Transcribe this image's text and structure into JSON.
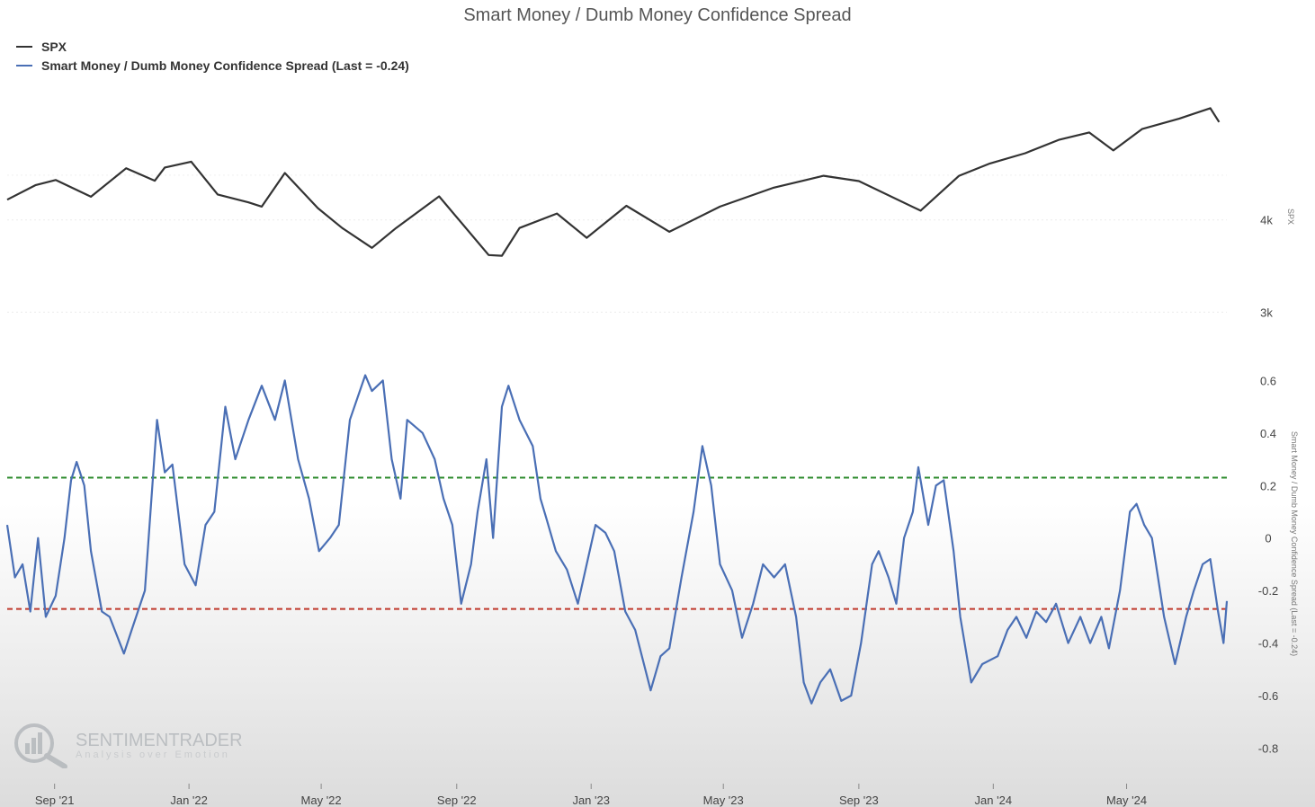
{
  "chart_data": {
    "type": "line",
    "title": "Smart Money / Dumb Money Confidence Spread",
    "legend": "top-left",
    "x_tick_labels": [
      "Sep '21",
      "Jan '22",
      "May '22",
      "Sep '22",
      "Jan '23",
      "May '23",
      "Sep '23",
      "Jan '24",
      "May '24"
    ],
    "x_range": [
      "2021-07-20",
      "2024-07-31"
    ],
    "upper_panel": {
      "y_axis_title": "SPX",
      "y_tick_labels": [
        "4k",
        "3k"
      ],
      "y_tick_values": [
        4000,
        3000
      ],
      "log_scale": true,
      "ylim": [
        2800,
        6000
      ]
    },
    "lower_panel": {
      "y_axis_title": "Smart Money / Dumb Money Confidence Spread (Last = -0.24)",
      "y_tick_labels": [
        "0.6",
        "0.4",
        "0.2",
        "0",
        "-0.2",
        "-0.4",
        "-0.6",
        "-0.8"
      ],
      "y_tick_values": [
        0.6,
        0.4,
        0.2,
        0,
        -0.2,
        -0.4,
        -0.6,
        -0.8
      ],
      "ylim": [
        -0.86,
        0.68
      ],
      "reference_lines": [
        {
          "value": 0.23,
          "color": "#2e8b2e",
          "style": "dashed"
        },
        {
          "value": -0.27,
          "color": "#c0392b",
          "style": "dashed"
        }
      ]
    },
    "series": [
      {
        "name": "SPX",
        "color": "#333333",
        "panel": "upper",
        "points": [
          [
            "2021-07-20",
            4260
          ],
          [
            "2021-08-15",
            4460
          ],
          [
            "2021-09-02",
            4530
          ],
          [
            "2021-10-04",
            4300
          ],
          [
            "2021-11-05",
            4700
          ],
          [
            "2021-12-01",
            4520
          ],
          [
            "2021-12-10",
            4710
          ],
          [
            "2022-01-03",
            4796
          ],
          [
            "2022-01-27",
            4330
          ],
          [
            "2022-02-24",
            4225
          ],
          [
            "2022-03-08",
            4170
          ],
          [
            "2022-03-29",
            4630
          ],
          [
            "2022-04-28",
            4150
          ],
          [
            "2022-05-20",
            3900
          ],
          [
            "2022-06-16",
            3666
          ],
          [
            "2022-07-08",
            3900
          ],
          [
            "2022-08-16",
            4305
          ],
          [
            "2022-09-30",
            3585
          ],
          [
            "2022-10-12",
            3577
          ],
          [
            "2022-10-28",
            3900
          ],
          [
            "2022-12-01",
            4080
          ],
          [
            "2022-12-28",
            3783
          ],
          [
            "2023-02-02",
            4180
          ],
          [
            "2023-03-13",
            3855
          ],
          [
            "2023-04-28",
            4170
          ],
          [
            "2023-06-15",
            4420
          ],
          [
            "2023-07-31",
            4590
          ],
          [
            "2023-09-01",
            4515
          ],
          [
            "2023-10-27",
            4117
          ],
          [
            "2023-12-01",
            4590
          ],
          [
            "2023-12-29",
            4770
          ],
          [
            "2024-01-30",
            4925
          ],
          [
            "2024-03-01",
            5137
          ],
          [
            "2024-03-28",
            5254
          ],
          [
            "2024-04-19",
            4967
          ],
          [
            "2024-05-15",
            5310
          ],
          [
            "2024-06-18",
            5487
          ],
          [
            "2024-07-16",
            5667
          ],
          [
            "2024-07-24",
            5427
          ]
        ]
      },
      {
        "name": "Smart Money / Dumb Money Confidence Spread (Last = -0.24)",
        "color": "#4a6fb5",
        "panel": "lower",
        "last": -0.24,
        "points": [
          [
            "2021-07-20",
            0.05
          ],
          [
            "2021-07-27",
            -0.15
          ],
          [
            "2021-08-03",
            -0.1
          ],
          [
            "2021-08-10",
            -0.28
          ],
          [
            "2021-08-17",
            0.0
          ],
          [
            "2021-08-24",
            -0.3
          ],
          [
            "2021-09-02",
            -0.22
          ],
          [
            "2021-09-10",
            0.0
          ],
          [
            "2021-09-16",
            0.22
          ],
          [
            "2021-09-21",
            0.29
          ],
          [
            "2021-09-28",
            0.2
          ],
          [
            "2021-10-04",
            -0.05
          ],
          [
            "2021-10-14",
            -0.28
          ],
          [
            "2021-10-21",
            -0.3
          ],
          [
            "2021-11-03",
            -0.44
          ],
          [
            "2021-11-10",
            -0.35
          ],
          [
            "2021-11-22",
            -0.2
          ],
          [
            "2021-12-03",
            0.45
          ],
          [
            "2021-12-10",
            0.25
          ],
          [
            "2021-12-17",
            0.28
          ],
          [
            "2021-12-28",
            -0.1
          ],
          [
            "2022-01-07",
            -0.18
          ],
          [
            "2022-01-16",
            0.05
          ],
          [
            "2022-01-24",
            0.1
          ],
          [
            "2022-02-03",
            0.5
          ],
          [
            "2022-02-12",
            0.3
          ],
          [
            "2022-02-24",
            0.45
          ],
          [
            "2022-03-08",
            0.58
          ],
          [
            "2022-03-20",
            0.45
          ],
          [
            "2022-03-29",
            0.6
          ],
          [
            "2022-04-10",
            0.3
          ],
          [
            "2022-04-20",
            0.15
          ],
          [
            "2022-04-29",
            -0.05
          ],
          [
            "2022-05-09",
            0.0
          ],
          [
            "2022-05-17",
            0.05
          ],
          [
            "2022-05-27",
            0.45
          ],
          [
            "2022-06-10",
            0.62
          ],
          [
            "2022-06-16",
            0.56
          ],
          [
            "2022-06-26",
            0.6
          ],
          [
            "2022-07-04",
            0.3
          ],
          [
            "2022-07-12",
            0.15
          ],
          [
            "2022-07-18",
            0.45
          ],
          [
            "2022-08-01",
            0.4
          ],
          [
            "2022-08-12",
            0.3
          ],
          [
            "2022-08-20",
            0.15
          ],
          [
            "2022-08-28",
            0.05
          ],
          [
            "2022-09-05",
            -0.25
          ],
          [
            "2022-09-14",
            -0.1
          ],
          [
            "2022-09-20",
            0.1
          ],
          [
            "2022-09-28",
            0.3
          ],
          [
            "2022-10-04",
            0.0
          ],
          [
            "2022-10-12",
            0.5
          ],
          [
            "2022-10-18",
            0.58
          ],
          [
            "2022-10-28",
            0.45
          ],
          [
            "2022-11-09",
            0.35
          ],
          [
            "2022-11-16",
            0.15
          ],
          [
            "2022-11-21",
            0.08
          ],
          [
            "2022-11-30",
            -0.05
          ],
          [
            "2022-12-10",
            -0.12
          ],
          [
            "2022-12-20",
            -0.25
          ],
          [
            "2022-12-28",
            -0.1
          ],
          [
            "2023-01-05",
            0.05
          ],
          [
            "2023-01-14",
            0.02
          ],
          [
            "2023-01-22",
            -0.05
          ],
          [
            "2023-02-01",
            -0.28
          ],
          [
            "2023-02-10",
            -0.35
          ],
          [
            "2023-02-24",
            -0.58
          ],
          [
            "2023-03-05",
            -0.45
          ],
          [
            "2023-03-13",
            -0.42
          ],
          [
            "2023-03-24",
            -0.15
          ],
          [
            "2023-04-04",
            0.1
          ],
          [
            "2023-04-12",
            0.35
          ],
          [
            "2023-04-20",
            0.2
          ],
          [
            "2023-04-28",
            -0.1
          ],
          [
            "2023-05-09",
            -0.2
          ],
          [
            "2023-05-18",
            -0.38
          ],
          [
            "2023-05-28",
            -0.25
          ],
          [
            "2023-06-06",
            -0.1
          ],
          [
            "2023-06-16",
            -0.15
          ],
          [
            "2023-06-26",
            -0.1
          ],
          [
            "2023-07-06",
            -0.3
          ],
          [
            "2023-07-13",
            -0.55
          ],
          [
            "2023-07-20",
            -0.63
          ],
          [
            "2023-07-28",
            -0.55
          ],
          [
            "2023-08-06",
            -0.5
          ],
          [
            "2023-08-16",
            -0.62
          ],
          [
            "2023-08-25",
            -0.6
          ],
          [
            "2023-09-03",
            -0.4
          ],
          [
            "2023-09-13",
            -0.1
          ],
          [
            "2023-09-19",
            -0.05
          ],
          [
            "2023-09-28",
            -0.15
          ],
          [
            "2023-10-05",
            -0.25
          ],
          [
            "2023-10-12",
            0.0
          ],
          [
            "2023-10-20",
            0.1
          ],
          [
            "2023-10-25",
            0.27
          ],
          [
            "2023-11-03",
            0.05
          ],
          [
            "2023-11-10",
            0.2
          ],
          [
            "2023-11-17",
            0.22
          ],
          [
            "2023-11-26",
            -0.05
          ],
          [
            "2023-12-02",
            -0.3
          ],
          [
            "2023-12-12",
            -0.55
          ],
          [
            "2023-12-22",
            -0.48
          ],
          [
            "2024-01-05",
            -0.45
          ],
          [
            "2024-01-14",
            -0.35
          ],
          [
            "2024-01-22",
            -0.3
          ],
          [
            "2024-01-31",
            -0.38
          ],
          [
            "2024-02-09",
            -0.28
          ],
          [
            "2024-02-18",
            -0.32
          ],
          [
            "2024-02-27",
            -0.25
          ],
          [
            "2024-03-09",
            -0.4
          ],
          [
            "2024-03-20",
            -0.3
          ],
          [
            "2024-03-29",
            -0.4
          ],
          [
            "2024-04-08",
            -0.3
          ],
          [
            "2024-04-15",
            -0.42
          ],
          [
            "2024-04-25",
            -0.2
          ],
          [
            "2024-05-04",
            0.1
          ],
          [
            "2024-05-10",
            0.13
          ],
          [
            "2024-05-17",
            0.05
          ],
          [
            "2024-05-24",
            0.0
          ],
          [
            "2024-06-04",
            -0.3
          ],
          [
            "2024-06-14",
            -0.48
          ],
          [
            "2024-06-24",
            -0.3
          ],
          [
            "2024-07-01",
            -0.2
          ],
          [
            "2024-07-09",
            -0.1
          ],
          [
            "2024-07-16",
            -0.08
          ],
          [
            "2024-07-23",
            -0.28
          ],
          [
            "2024-07-28",
            -0.4
          ],
          [
            "2024-07-31",
            -0.24
          ]
        ]
      }
    ]
  },
  "watermark": {
    "name": "SENTIMENTRADER",
    "tagline": "Analysis over Emotion"
  }
}
